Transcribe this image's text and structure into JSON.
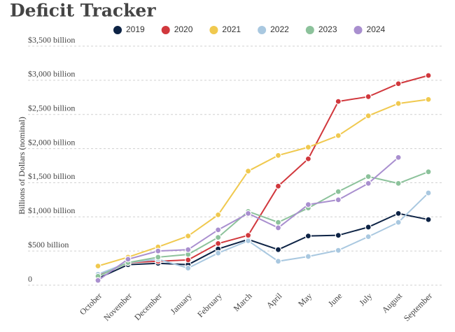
{
  "chart_data": {
    "type": "line",
    "title": "Deficit Tracker",
    "y_label": "Billions of Dollars (nominal)",
    "categories": [
      "October",
      "November",
      "December",
      "January",
      "February",
      "March",
      "April",
      "May",
      "June",
      "July",
      "August",
      "September"
    ],
    "series": [
      {
        "name": "2019",
        "color": "#0d2345",
        "values": [
          100,
          300,
          320,
          300,
          530,
          670,
          520,
          720,
          730,
          850,
          1050,
          960
        ]
      },
      {
        "name": "2020",
        "color": "#d1383d",
        "values": [
          140,
          330,
          350,
          370,
          610,
          730,
          1450,
          1850,
          2690,
          2760,
          2950,
          3070
        ]
      },
      {
        "name": "2021",
        "color": "#f0c94f",
        "values": [
          280,
          410,
          560,
          720,
          1030,
          1670,
          1900,
          2020,
          2190,
          2480,
          2660,
          2720
        ]
      },
      {
        "name": "2022",
        "color": "#a9c8e0",
        "values": [
          160,
          330,
          380,
          250,
          470,
          650,
          350,
          420,
          510,
          710,
          920,
          1350
        ]
      },
      {
        "name": "2023",
        "color": "#8cc29b",
        "values": [
          130,
          330,
          410,
          450,
          700,
          1080,
          920,
          1130,
          1370,
          1590,
          1490,
          1660
        ]
      },
      {
        "name": "2024",
        "color": "#a98fcf",
        "values": [
          70,
          380,
          500,
          520,
          810,
          1050,
          840,
          1180,
          1250,
          1490,
          1870,
          null
        ]
      }
    ],
    "ylim": [
      0,
      3500
    ],
    "yticks": [
      0,
      {
        "value": 500,
        "label": "$500 billion"
      },
      {
        "value": 1000,
        "label": "$1,000 billion"
      },
      {
        "value": 1500,
        "label": "$1,500 billion"
      },
      {
        "value": 2000,
        "label": "$2,000 billion"
      },
      {
        "value": 2500,
        "label": "$2,500 billion"
      },
      {
        "value": 3000,
        "label": "$3,000 billion"
      },
      {
        "value": 3500,
        "label": "$3,500 billion"
      }
    ],
    "grid": true
  }
}
